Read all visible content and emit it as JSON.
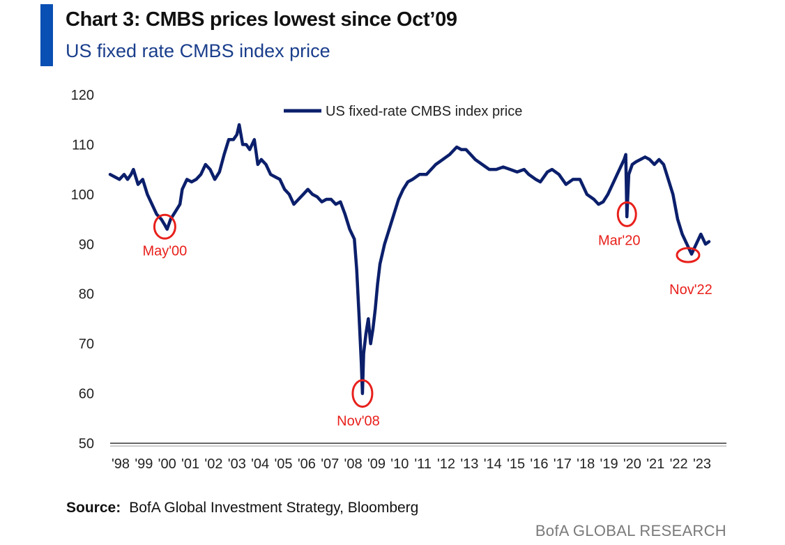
{
  "header": {
    "title": "Chart 3: CMBS prices lowest since Oct’09",
    "subtitle": "US fixed rate CMBS index price"
  },
  "footer": {
    "source_label": "Source:",
    "source_text": "BofA Global Investment Strategy, Bloomberg",
    "brand": "BofA GLOBAL RESEARCH"
  },
  "colors": {
    "accent": "#0a4fb3",
    "line": "#0b1f6b",
    "annotation": "#e8201b"
  },
  "chart_data": {
    "type": "line",
    "xlim": [
      1998.0,
      2023.9
    ],
    "ylim": [
      50,
      120
    ],
    "y_ticks": [
      50,
      60,
      70,
      80,
      90,
      100,
      110,
      120
    ],
    "y_tick_labels": [
      "50",
      "60",
      "70",
      "80",
      "90",
      "100",
      "110",
      "120"
    ],
    "x_ticks": [
      1998,
      1999,
      2000,
      2001,
      2002,
      2003,
      2004,
      2005,
      2006,
      2007,
      2008,
      2009,
      2010,
      2011,
      2012,
      2013,
      2014,
      2015,
      2016,
      2017,
      2018,
      2019,
      2020,
      2021,
      2022,
      2023
    ],
    "x_tick_labels": [
      "'98",
      "'99",
      "'00",
      "'01",
      "'02",
      "'03",
      "'04",
      "'05",
      "'06",
      "'07",
      "'08",
      "'09",
      "'10",
      "'11",
      "'12",
      "'13",
      "'14",
      "'15",
      "'16",
      "'17",
      "'18",
      "'19",
      "'20",
      "'21",
      "'22",
      "'23"
    ],
    "legend_position": "top-center",
    "grid": false,
    "series": [
      {
        "name": "US fixed-rate CMBS index price",
        "x": [
          1998.0,
          1998.2,
          1998.4,
          1998.6,
          1998.75,
          1998.9,
          1999.0,
          1999.2,
          1999.4,
          1999.6,
          1999.8,
          2000.0,
          2000.2,
          2000.33,
          2000.45,
          2000.6,
          2000.8,
          2001.0,
          2001.1,
          2001.3,
          2001.5,
          2001.7,
          2001.9,
          2002.1,
          2002.3,
          2002.5,
          2002.7,
          2002.9,
          2003.1,
          2003.3,
          2003.45,
          2003.55,
          2003.7,
          2003.85,
          2004.0,
          2004.2,
          2004.35,
          2004.5,
          2004.7,
          2004.9,
          2005.1,
          2005.3,
          2005.5,
          2005.7,
          2005.9,
          2006.1,
          2006.3,
          2006.5,
          2006.7,
          2006.9,
          2007.1,
          2007.3,
          2007.5,
          2007.7,
          2007.9,
          2008.1,
          2008.3,
          2008.5,
          2008.6,
          2008.7,
          2008.8,
          2008.85,
          2008.9,
          2009.0,
          2009.1,
          2009.2,
          2009.3,
          2009.4,
          2009.5,
          2009.6,
          2009.7,
          2009.8,
          2010.0,
          2010.2,
          2010.4,
          2010.6,
          2010.8,
          2011.0,
          2011.3,
          2011.6,
          2011.8,
          2012.0,
          2012.3,
          2012.6,
          2012.9,
          2013.1,
          2013.3,
          2013.5,
          2013.7,
          2014.0,
          2014.3,
          2014.6,
          2014.9,
          2015.2,
          2015.5,
          2015.8,
          2016.0,
          2016.3,
          2016.5,
          2016.8,
          2017.0,
          2017.3,
          2017.6,
          2017.9,
          2018.2,
          2018.5,
          2018.8,
          2019.0,
          2019.2,
          2019.4,
          2019.6,
          2019.8,
          2020.0,
          2020.1,
          2020.17,
          2020.22,
          2020.3,
          2020.45,
          2020.6,
          2020.8,
          2021.0,
          2021.2,
          2021.4,
          2021.6,
          2021.8,
          2022.0,
          2022.2,
          2022.4,
          2022.6,
          2022.8,
          2022.9,
          2023.0,
          2023.2,
          2023.4,
          2023.6,
          2023.75
        ],
        "y": [
          104,
          103.5,
          103,
          104,
          103,
          104,
          105,
          102,
          103,
          100,
          98,
          96,
          95,
          94,
          93,
          95,
          96.5,
          98,
          101,
          103,
          102.5,
          103,
          104,
          106,
          105,
          103,
          104.5,
          108,
          111,
          111,
          112,
          114,
          110,
          110,
          109,
          111,
          106,
          107,
          106,
          104,
          103.5,
          103,
          101,
          100,
          98,
          99,
          100,
          101,
          100,
          99.5,
          98.5,
          99,
          99,
          98,
          98.5,
          96,
          93,
          91,
          85,
          76,
          66,
          60,
          68,
          72,
          75,
          70,
          73,
          77,
          82,
          86,
          88,
          90,
          93,
          96,
          99,
          101,
          102.5,
          103,
          104,
          104,
          105,
          106,
          107,
          108,
          109.5,
          109,
          109,
          108,
          107,
          106,
          105,
          105,
          105.5,
          105,
          104.5,
          105,
          104,
          103,
          102.5,
          104.5,
          105,
          104,
          102,
          103,
          103,
          100,
          99,
          98,
          98.5,
          100,
          102,
          104,
          106,
          107,
          108,
          95.5,
          104,
          106,
          106.5,
          107,
          107.5,
          107,
          106,
          107,
          106,
          103,
          100,
          95,
          92,
          90,
          89,
          88,
          90,
          92,
          90,
          90.5
        ]
      }
    ],
    "annotations": [
      {
        "label": "May'00",
        "x": 2000.35,
        "y": 93.5
      },
      {
        "label": "Nov'08",
        "x": 2008.85,
        "y": 60
      },
      {
        "label": "Mar'20",
        "x": 2020.22,
        "y": 96
      },
      {
        "label": "Nov'22",
        "x": 2022.85,
        "y": 87.8
      }
    ]
  }
}
